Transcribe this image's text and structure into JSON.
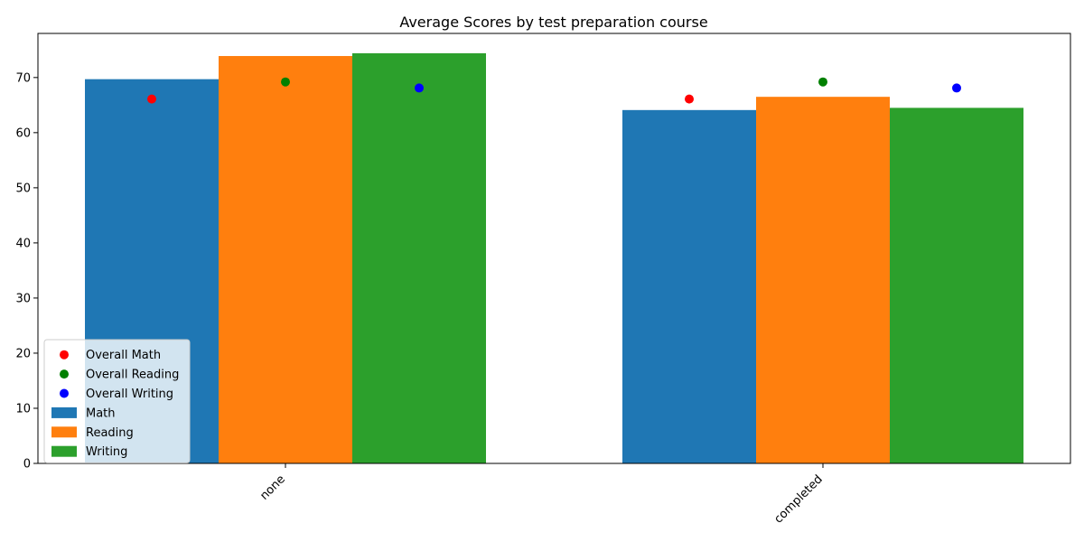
{
  "chart_data": {
    "type": "bar",
    "title": "Average Scores by test preparation course",
    "xlabel": "",
    "ylabel": "",
    "categories": [
      "none",
      "completed"
    ],
    "series": [
      {
        "name": "Math",
        "values": [
          69.7,
          64.1
        ],
        "color": "#1f77b4"
      },
      {
        "name": "Reading",
        "values": [
          73.9,
          66.5
        ],
        "color": "#ff7f0e"
      },
      {
        "name": "Writing",
        "values": [
          74.4,
          64.5
        ],
        "color": "#2ca02c"
      }
    ],
    "overall_markers": [
      {
        "name": "Overall Math",
        "value": 66.1,
        "color": "#ff0000"
      },
      {
        "name": "Overall Reading",
        "value": 69.2,
        "color": "#008000"
      },
      {
        "name": "Overall Writing",
        "value": 68.1,
        "color": "#0000ff"
      }
    ],
    "ylim": [
      0,
      78
    ],
    "yticks": [
      0,
      10,
      20,
      30,
      40,
      50,
      60,
      70
    ],
    "legend_position": "lower-left",
    "grid": false
  }
}
